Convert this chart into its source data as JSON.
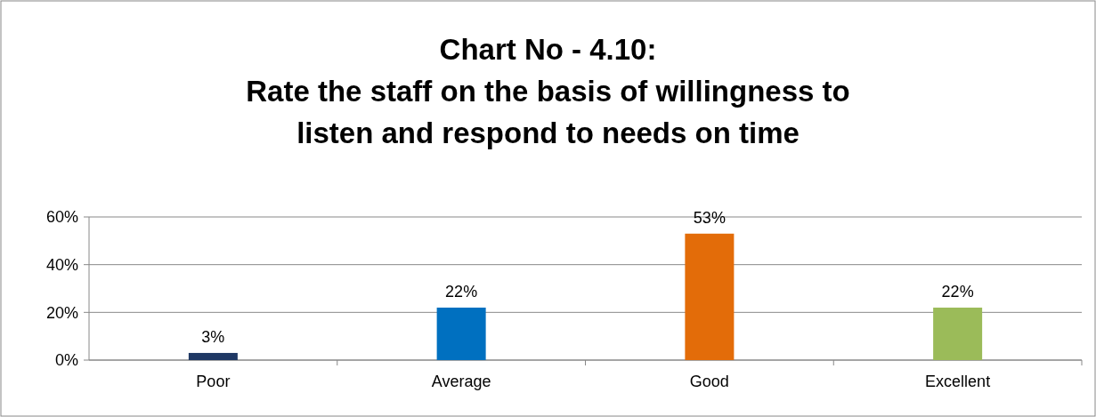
{
  "chart_data": {
    "type": "bar",
    "title": "Chart No - 4.10:\nRate the staff on the basis of willingness to\nlisten and respond to needs on time",
    "categories": [
      "Poor",
      "Average",
      "Good",
      "Excellent"
    ],
    "values": [
      3,
      22,
      53,
      22
    ],
    "colors": [
      "#1f3864",
      "#0070c0",
      "#e36c09",
      "#9bbb59"
    ],
    "value_labels": [
      "3%",
      "22%",
      "53%",
      "22%"
    ],
    "ylim": [
      0,
      60
    ],
    "yticks": [
      {
        "value": 0,
        "label": "0%"
      },
      {
        "value": 20,
        "label": "20%"
      },
      {
        "value": 40,
        "label": "40%"
      },
      {
        "value": 60,
        "label": "60%"
      }
    ],
    "grid": "y"
  }
}
